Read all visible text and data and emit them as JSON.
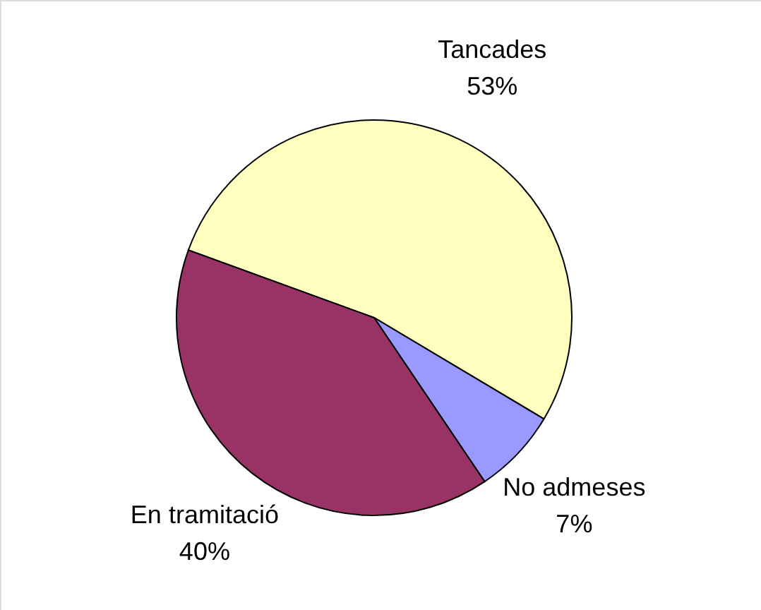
{
  "chart_data": {
    "type": "pie",
    "categories": [
      "Tancades",
      "No admeses",
      "En tramitació"
    ],
    "values": [
      53,
      7,
      40
    ],
    "colors": [
      "#ffffc0",
      "#9999ff",
      "#993366"
    ],
    "value_labels": [
      "53%",
      "7%",
      "40%"
    ]
  }
}
